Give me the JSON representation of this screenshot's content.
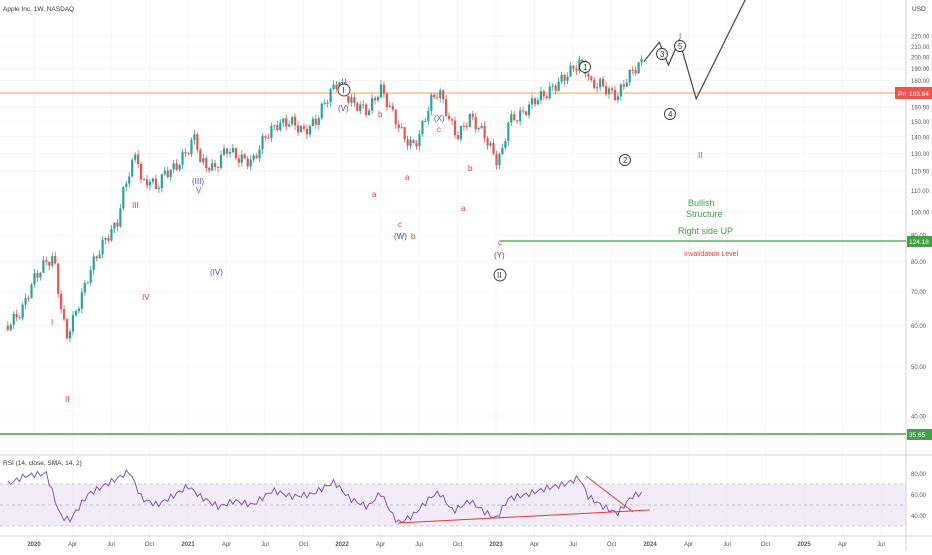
{
  "header": {
    "title": "Apple Inc, 1W, NASDAQ",
    "currency": "USD"
  },
  "colors": {
    "up": "#26a69a",
    "down": "#ef5350",
    "wave_major": "#5b5b8f",
    "wave_minor_red": "#e53935",
    "wave_blue": "#4a4aa8",
    "green": "#43a047",
    "orange": "#f4a460",
    "rsi_line": "#7e57c2",
    "rsi_band": "#ede7f6",
    "grid": "#eef0f3",
    "axis_text": "#555555"
  },
  "price_axis": {
    "ticks": [
      "220.00",
      "210.00",
      "200.00",
      "190.00",
      "180.00",
      "170.00",
      "160.00",
      "150.00",
      "140.00",
      "130.00",
      "120.00",
      "110.00",
      "100.00",
      "90.00",
      "80.00",
      "70.00",
      "60.00",
      "50.00",
      "40.00"
    ],
    "scale": "log"
  },
  "price_tags": {
    "current_label": "Prl",
    "current": "193.64",
    "invalidation": "124.18",
    "support": "35.65"
  },
  "rsi": {
    "label": "RSI (14, close, SMA, 14, 2)",
    "ticks": [
      "80.00",
      "60.00",
      "40.00"
    ],
    "upper_band": 70,
    "lower_band": 30
  },
  "time_axis": [
    "2020",
    "Apr",
    "Jul",
    "Oct",
    "2021",
    "Apr",
    "Jul",
    "Oct",
    "2022",
    "Apr",
    "Jul",
    "Oct",
    "2023",
    "Apr",
    "Jul",
    "Oct",
    "2024",
    "Apr",
    "Jul",
    "Oct",
    "2025",
    "Apr",
    "Jul"
  ],
  "annotations": {
    "bullish": "Bullish",
    "structure": "Structure",
    "right_side": "Right side UP",
    "invalidation": "Invalidation Level"
  },
  "wave_labels": {
    "I_top": "I",
    "II_bottom": "II",
    "III": "III",
    "IV": "IV",
    "V": "V",
    "paren_III": "(III)",
    "paren_IV": "(IV)",
    "paren_V": "(V)",
    "circle_I": "I",
    "circle_II": "II",
    "a1": "a",
    "b1": "b",
    "c1": "c",
    "paren_W": "(W)",
    "b2": "b",
    "a2": "a",
    "paren_X": "(X)",
    "c2": "c",
    "a3": "a",
    "b3": "b",
    "c3": "c",
    "paren_Y": "(Y)",
    "circ1": "1",
    "circ2": "2",
    "circ3": "3",
    "circ4": "4",
    "circ5": "5",
    "proj_I": "I",
    "proj_II": "II"
  },
  "chart_data": {
    "type": "candlestick",
    "title": "Apple Inc, 1W, NASDAQ",
    "ylim": [
      35,
      235
    ],
    "yscale": "log",
    "x_range": [
      "2019-10",
      "2025-08"
    ],
    "close": [
      [
        2019.83,
        60
      ],
      [
        2019.92,
        64
      ],
      [
        2020.0,
        74
      ],
      [
        2020.08,
        80
      ],
      [
        2020.13,
        81
      ],
      [
        2020.17,
        66
      ],
      [
        2020.21,
        57
      ],
      [
        2020.25,
        61
      ],
      [
        2020.32,
        70
      ],
      [
        2020.38,
        79
      ],
      [
        2020.46,
        88
      ],
      [
        2020.54,
        95
      ],
      [
        2020.58,
        109
      ],
      [
        2020.62,
        120
      ],
      [
        2020.67,
        131
      ],
      [
        2020.7,
        112
      ],
      [
        2020.75,
        116
      ],
      [
        2020.79,
        111
      ],
      [
        2020.85,
        119
      ],
      [
        2020.92,
        122
      ],
      [
        2021.0,
        132
      ],
      [
        2021.05,
        141
      ],
      [
        2021.08,
        125
      ],
      [
        2021.17,
        121
      ],
      [
        2021.25,
        133
      ],
      [
        2021.33,
        127
      ],
      [
        2021.42,
        125
      ],
      [
        2021.5,
        140
      ],
      [
        2021.58,
        148
      ],
      [
        2021.67,
        150
      ],
      [
        2021.75,
        143
      ],
      [
        2021.83,
        150
      ],
      [
        2021.92,
        170
      ],
      [
        2021.98,
        180
      ],
      [
        2022.05,
        164
      ],
      [
        2022.17,
        157
      ],
      [
        2022.25,
        174
      ],
      [
        2022.33,
        155
      ],
      [
        2022.4,
        140
      ],
      [
        2022.46,
        134
      ],
      [
        2022.5,
        140
      ],
      [
        2022.58,
        165
      ],
      [
        2022.63,
        172
      ],
      [
        2022.7,
        150
      ],
      [
        2022.75,
        140
      ],
      [
        2022.83,
        153
      ],
      [
        2022.92,
        142
      ],
      [
        2023.0,
        126
      ],
      [
        2023.04,
        130
      ],
      [
        2023.08,
        150
      ],
      [
        2023.17,
        155
      ],
      [
        2023.25,
        165
      ],
      [
        2023.33,
        170
      ],
      [
        2023.42,
        180
      ],
      [
        2023.5,
        190
      ],
      [
        2023.54,
        195
      ],
      [
        2023.58,
        190
      ],
      [
        2023.62,
        176
      ],
      [
        2023.67,
        178
      ],
      [
        2023.75,
        170
      ],
      [
        2023.79,
        168
      ],
      [
        2023.85,
        182
      ],
      [
        2023.92,
        193
      ],
      [
        2023.96,
        196
      ]
    ],
    "waves": [
      {
        "label": "I",
        "x": 2020.12,
        "price": 84
      },
      {
        "label": "II",
        "x": 2020.23,
        "price": 53
      },
      {
        "label": "III",
        "x": 2020.66,
        "price": 137
      },
      {
        "label": "IV",
        "x": 2020.72,
        "price": 103
      },
      {
        "label": "V",
        "x": 2021.08,
        "price": 145
      },
      {
        "label": "(III)",
        "x": 2021.08,
        "price": 145
      },
      {
        "label": "(IV)",
        "x": 2021.22,
        "price": 116
      },
      {
        "label": "(V)",
        "x": 2022.0,
        "price": 182
      },
      {
        "label": "a",
        "x": 2022.12,
        "price": 150
      },
      {
        "label": "b",
        "x": 2022.25,
        "price": 179
      },
      {
        "label": "c",
        "x": 2022.37,
        "price": 130
      },
      {
        "label": "(W)",
        "x": 2022.37,
        "price": 130
      },
      {
        "label": "b",
        "x": 2022.44,
        "price": 130
      },
      {
        "label": "a",
        "x": 2022.42,
        "price": 154
      },
      {
        "label": "(X)",
        "x": 2022.63,
        "price": 176
      },
      {
        "label": "c",
        "x": 2022.63,
        "price": 176
      },
      {
        "label": "a",
        "x": 2022.72,
        "price": 144
      },
      {
        "label": "b",
        "x": 2022.81,
        "price": 157
      },
      {
        "label": "c",
        "x": 2023.0,
        "price": 124
      },
      {
        "label": "(Y)",
        "x": 2023.0,
        "price": 124
      }
    ],
    "projection": [
      [
        2023.96,
        196
      ],
      [
        2024.06,
        214
      ],
      [
        2024.12,
        193
      ],
      [
        2024.19,
        216
      ],
      [
        2024.3,
        166
      ],
      [
        2024.7,
        290
      ]
    ],
    "levels": {
      "invalidation": 124.18,
      "support": 35.65,
      "current": 193.64
    },
    "rsi": {
      "ylim": [
        25,
        90
      ],
      "values": [
        [
          2019.83,
          70
        ],
        [
          2019.95,
          78
        ],
        [
          2020.08,
          80
        ],
        [
          2020.17,
          40
        ],
        [
          2020.23,
          35
        ],
        [
          2020.35,
          60
        ],
        [
          2020.5,
          72
        ],
        [
          2020.62,
          82
        ],
        [
          2020.7,
          56
        ],
        [
          2020.8,
          50
        ],
        [
          2020.92,
          60
        ],
        [
          2021.0,
          68
        ],
        [
          2021.08,
          58
        ],
        [
          2021.2,
          48
        ],
        [
          2021.3,
          54
        ],
        [
          2021.42,
          50
        ],
        [
          2021.55,
          64
        ],
        [
          2021.67,
          58
        ],
        [
          2021.8,
          60
        ],
        [
          2021.95,
          72
        ],
        [
          2022.05,
          56
        ],
        [
          2022.17,
          48
        ],
        [
          2022.25,
          62
        ],
        [
          2022.33,
          40
        ],
        [
          2022.37,
          33
        ],
        [
          2022.46,
          40
        ],
        [
          2022.58,
          58
        ],
        [
          2022.63,
          62
        ],
        [
          2022.72,
          44
        ],
        [
          2022.83,
          54
        ],
        [
          2022.92,
          44
        ],
        [
          2023.0,
          37
        ],
        [
          2023.08,
          56
        ],
        [
          2023.2,
          60
        ],
        [
          2023.33,
          66
        ],
        [
          2023.45,
          70
        ],
        [
          2023.54,
          76
        ],
        [
          2023.6,
          58
        ],
        [
          2023.7,
          48
        ],
        [
          2023.79,
          42
        ],
        [
          2023.88,
          58
        ],
        [
          2023.96,
          62
        ]
      ],
      "trend_lines": [
        {
          "from": [
            2022.37,
            33
          ],
          "to": [
            2023.9,
            45
          ]
        },
        {
          "from": [
            2023.54,
            76
          ],
          "to": [
            2023.82,
            42
          ]
        }
      ]
    }
  }
}
